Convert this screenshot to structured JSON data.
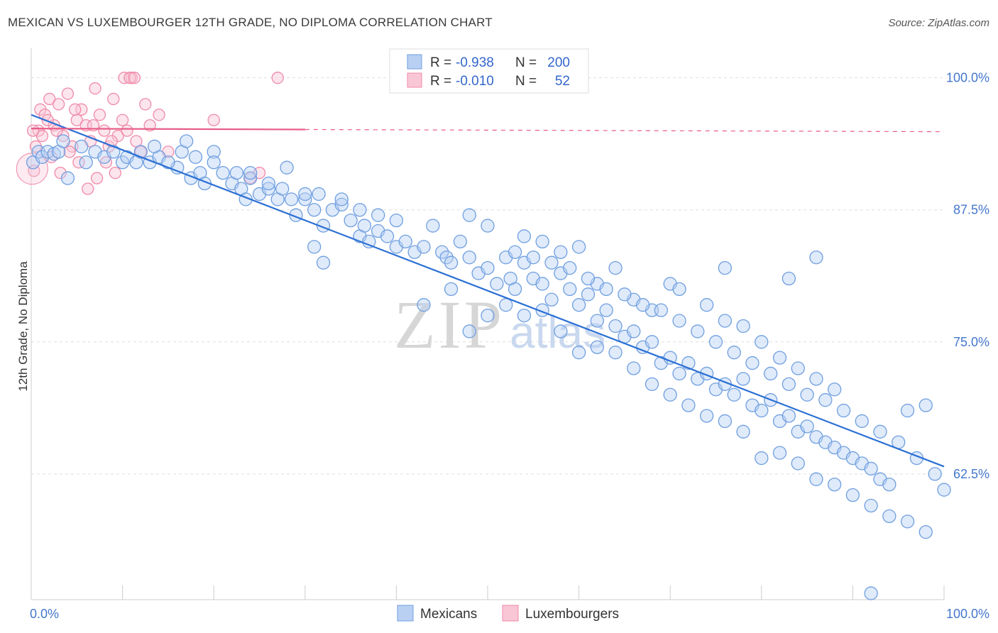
{
  "header": {
    "title": "MEXICAN VS LUXEMBOURGER 12TH GRADE, NO DIPLOMA CORRELATION CHART",
    "source": "Source: ZipAtlas.com"
  },
  "watermark": {
    "zip": "ZIP",
    "atlas": "atlas"
  },
  "colors": {
    "mexicans": "#6f9fe0",
    "mexicans_line": "#2a6fd4",
    "luxembourgers": "#f08aa8",
    "luxembourgers_line": "#e85c88",
    "tick_label": "#4477cc",
    "grid": "#dddddd"
  },
  "legend": {
    "rows": [
      {
        "r_label": "R = ",
        "r_value": "-0.938",
        "n_label": "N = ",
        "n_value": "200"
      },
      {
        "r_label": "R = ",
        "r_value": "-0.010",
        "n_label": "N = ",
        "n_value": "52"
      }
    ]
  },
  "bottom_legend": [
    "Mexicans",
    "Luxembourgers"
  ],
  "chart_data": {
    "type": "scatter",
    "title": "MEXICAN VS LUXEMBOURGER 12TH GRADE, NO DIPLOMA CORRELATION CHART",
    "xlabel": "",
    "ylabel": "12th Grade, No Diploma",
    "xlim": [
      0,
      100
    ],
    "ylim": [
      50.6,
      102.8
    ],
    "x_tick_labels": [
      "0.0%",
      "100.0%"
    ],
    "y_ticks": [
      100.0,
      87.5,
      75.0,
      62.5
    ],
    "y_tick_labels": [
      "100.0%",
      "87.5%",
      "75.0%",
      "62.5%"
    ],
    "grid": true,
    "legend_position": "top-center",
    "series": [
      {
        "name": "Mexicans",
        "r": -0.938,
        "n": 200,
        "trend": {
          "x": [
            0,
            100
          ],
          "y": [
            96.5,
            63.2
          ]
        },
        "points": [
          [
            0.2,
            92.0
          ],
          [
            0.8,
            93.0
          ],
          [
            1.2,
            92.5
          ],
          [
            1.8,
            93.0
          ],
          [
            2.5,
            92.8
          ],
          [
            3.0,
            93.0
          ],
          [
            3.5,
            94.0
          ],
          [
            4.0,
            90.5
          ],
          [
            5.5,
            93.5
          ],
          [
            6.0,
            92.0
          ],
          [
            7.0,
            93.0
          ],
          [
            8.0,
            92.5
          ],
          [
            9.0,
            93.0
          ],
          [
            10.0,
            92.0
          ],
          [
            10.5,
            92.5
          ],
          [
            11.5,
            92.0
          ],
          [
            12.0,
            93.0
          ],
          [
            13.0,
            92.0
          ],
          [
            14.0,
            92.5
          ],
          [
            13.5,
            93.5
          ],
          [
            16.0,
            91.5
          ],
          [
            16.5,
            93.0
          ],
          [
            15.0,
            92.0
          ],
          [
            17.5,
            90.5
          ],
          [
            17.0,
            94.0
          ],
          [
            18.5,
            91.0
          ],
          [
            19.0,
            90.0
          ],
          [
            20.0,
            93.0
          ],
          [
            21.0,
            91.0
          ],
          [
            22.0,
            90.0
          ],
          [
            22.5,
            91.0
          ],
          [
            23.0,
            89.5
          ],
          [
            23.5,
            88.5
          ],
          [
            24.0,
            90.5
          ],
          [
            25.0,
            89.0
          ],
          [
            26.0,
            89.5
          ],
          [
            27.0,
            88.5
          ],
          [
            27.5,
            89.5
          ],
          [
            28.0,
            91.5
          ],
          [
            28.5,
            88.5
          ],
          [
            29.0,
            87.0
          ],
          [
            30.0,
            88.5
          ],
          [
            31.0,
            87.5
          ],
          [
            31.5,
            89.0
          ],
          [
            32.0,
            86.0
          ],
          [
            33.0,
            87.5
          ],
          [
            34.0,
            88.0
          ],
          [
            35.0,
            86.5
          ],
          [
            36.0,
            85.0
          ],
          [
            36.5,
            86.0
          ],
          [
            37.0,
            84.5
          ],
          [
            38.0,
            85.5
          ],
          [
            39.0,
            85.0
          ],
          [
            40.0,
            84.0
          ],
          [
            41.0,
            84.5
          ],
          [
            42.0,
            83.5
          ],
          [
            43.0,
            84.0
          ],
          [
            44.0,
            86.0
          ],
          [
            45.0,
            83.5
          ],
          [
            45.5,
            83.0
          ],
          [
            46.0,
            82.5
          ],
          [
            47.0,
            84.5
          ],
          [
            48.0,
            83.0
          ],
          [
            49.0,
            81.5
          ],
          [
            50.0,
            82.0
          ],
          [
            51.0,
            80.5
          ],
          [
            52.0,
            83.0
          ],
          [
            52.5,
            81.0
          ],
          [
            53.0,
            80.0
          ],
          [
            54.0,
            82.5
          ],
          [
            55.0,
            81.0
          ],
          [
            56.0,
            80.5
          ],
          [
            57.0,
            79.0
          ],
          [
            58.0,
            81.5
          ],
          [
            59.0,
            80.0
          ],
          [
            60.0,
            78.5
          ],
          [
            61.0,
            79.5
          ],
          [
            62.0,
            77.0
          ],
          [
            63.0,
            78.0
          ],
          [
            64.0,
            76.5
          ],
          [
            65.0,
            75.5
          ],
          [
            66.0,
            76.0
          ],
          [
            67.0,
            74.5
          ],
          [
            68.0,
            75.0
          ],
          [
            69.0,
            73.0
          ],
          [
            70.0,
            73.5
          ],
          [
            71.0,
            72.0
          ],
          [
            72.0,
            73.0
          ],
          [
            73.0,
            71.5
          ],
          [
            74.0,
            72.0
          ],
          [
            75.0,
            70.5
          ],
          [
            76.0,
            71.0
          ],
          [
            77.0,
            70.0
          ],
          [
            78.0,
            71.5
          ],
          [
            79.0,
            69.0
          ],
          [
            80.0,
            68.5
          ],
          [
            81.0,
            69.5
          ],
          [
            82.0,
            67.5
          ],
          [
            83.0,
            68.0
          ],
          [
            84.0,
            66.5
          ],
          [
            85.0,
            67.0
          ],
          [
            86.0,
            66.0
          ],
          [
            87.0,
            65.5
          ],
          [
            88.0,
            65.0
          ],
          [
            89.0,
            64.5
          ],
          [
            90.0,
            64.0
          ],
          [
            91.0,
            63.5
          ],
          [
            92.0,
            63.0
          ],
          [
            93.0,
            62.0
          ],
          [
            94.0,
            61.5
          ],
          [
            31.0,
            84.0
          ],
          [
            32.0,
            82.5
          ],
          [
            43.0,
            78.5
          ],
          [
            46.0,
            80.0
          ],
          [
            48.0,
            76.0
          ],
          [
            50.0,
            77.5
          ],
          [
            52.0,
            78.5
          ],
          [
            54.0,
            77.5
          ],
          [
            56.0,
            78.0
          ],
          [
            58.0,
            76.0
          ],
          [
            60.0,
            74.0
          ],
          [
            62.0,
            74.5
          ],
          [
            64.0,
            74.0
          ],
          [
            66.0,
            72.5
          ],
          [
            68.0,
            71.0
          ],
          [
            70.0,
            70.0
          ],
          [
            72.0,
            69.0
          ],
          [
            74.0,
            68.0
          ],
          [
            76.0,
            67.5
          ],
          [
            78.0,
            66.5
          ],
          [
            80.0,
            64.0
          ],
          [
            82.0,
            64.5
          ],
          [
            84.0,
            63.5
          ],
          [
            86.0,
            62.0
          ],
          [
            88.0,
            61.5
          ],
          [
            90.0,
            60.5
          ],
          [
            92.0,
            59.5
          ],
          [
            94.0,
            58.5
          ],
          [
            96.0,
            58.0
          ],
          [
            98.0,
            57.0
          ],
          [
            70.0,
            80.5
          ],
          [
            71.0,
            80.0
          ],
          [
            74.0,
            78.5
          ],
          [
            76.0,
            77.0
          ],
          [
            78.0,
            76.5
          ],
          [
            80.0,
            75.0
          ],
          [
            82.0,
            73.5
          ],
          [
            84.0,
            72.5
          ],
          [
            86.0,
            71.5
          ],
          [
            88.0,
            70.5
          ],
          [
            62.0,
            80.5
          ],
          [
            64.0,
            82.0
          ],
          [
            66.0,
            79.0
          ],
          [
            68.0,
            78.0
          ],
          [
            58.0,
            83.5
          ],
          [
            60.0,
            84.0
          ],
          [
            56.0,
            84.5
          ],
          [
            54.0,
            85.0
          ],
          [
            50.0,
            86.0
          ],
          [
            48.0,
            87.0
          ],
          [
            76.0,
            82.0
          ],
          [
            83.0,
            81.0
          ],
          [
            86.0,
            83.0
          ],
          [
            96.0,
            68.5
          ],
          [
            98.0,
            69.0
          ],
          [
            100.0,
            61.0
          ],
          [
            99.0,
            62.5
          ],
          [
            97.0,
            64.0
          ],
          [
            95.0,
            65.5
          ],
          [
            93.0,
            66.5
          ],
          [
            91.0,
            67.5
          ],
          [
            89.0,
            68.5
          ],
          [
            87.0,
            69.5
          ],
          [
            85.0,
            70.0
          ],
          [
            83.0,
            71.0
          ],
          [
            81.0,
            72.0
          ],
          [
            79.0,
            73.0
          ],
          [
            77.0,
            74.0
          ],
          [
            75.0,
            75.0
          ],
          [
            73.0,
            76.0
          ],
          [
            71.0,
            77.0
          ],
          [
            69.0,
            78.0
          ],
          [
            67.0,
            78.5
          ],
          [
            65.0,
            79.5
          ],
          [
            63.0,
            80.0
          ],
          [
            61.0,
            81.0
          ],
          [
            59.0,
            82.0
          ],
          [
            57.0,
            82.5
          ],
          [
            55.0,
            83.0
          ],
          [
            53.0,
            83.5
          ],
          [
            40.0,
            86.5
          ],
          [
            38.0,
            87.0
          ],
          [
            36.0,
            87.5
          ],
          [
            34.0,
            88.5
          ],
          [
            30.0,
            89.0
          ],
          [
            26.0,
            90.0
          ],
          [
            24.0,
            91.0
          ],
          [
            20.0,
            92.0
          ],
          [
            18.0,
            92.5
          ],
          [
            92.0,
            51.2
          ]
        ]
      },
      {
        "name": "Luxembourgers",
        "r": -0.01,
        "n": 52,
        "trend": {
          "x": [
            0,
            100
          ],
          "y": [
            95.2,
            94.9
          ]
        },
        "points": [
          [
            0.3,
            91.2
          ],
          [
            0.8,
            95.0
          ],
          [
            1.0,
            97.0
          ],
          [
            1.5,
            96.5
          ],
          [
            2.0,
            98.0
          ],
          [
            2.5,
            95.5
          ],
          [
            3.0,
            97.5
          ],
          [
            3.5,
            94.5
          ],
          [
            4.0,
            98.5
          ],
          [
            4.5,
            93.5
          ],
          [
            5.0,
            96.0
          ],
          [
            5.5,
            97.0
          ],
          [
            6.0,
            95.5
          ],
          [
            6.5,
            94.0
          ],
          [
            7.0,
            99.0
          ],
          [
            7.5,
            96.5
          ],
          [
            8.0,
            95.0
          ],
          [
            8.5,
            93.5
          ],
          [
            9.0,
            98.0
          ],
          [
            9.5,
            94.5
          ],
          [
            10.0,
            96.0
          ],
          [
            10.5,
            95.0
          ],
          [
            11.0,
            100.0
          ],
          [
            11.5,
            94.0
          ],
          [
            12.0,
            93.0
          ],
          [
            12.5,
            97.5
          ],
          [
            13.0,
            95.5
          ],
          [
            14.0,
            96.5
          ],
          [
            15.0,
            93.0
          ],
          [
            0.5,
            93.5
          ],
          [
            1.2,
            94.5
          ],
          [
            2.2,
            92.5
          ],
          [
            3.2,
            91.0
          ],
          [
            4.2,
            93.0
          ],
          [
            5.2,
            92.0
          ],
          [
            6.2,
            89.5
          ],
          [
            7.2,
            90.5
          ],
          [
            8.2,
            92.0
          ],
          [
            9.2,
            91.0
          ],
          [
            10.2,
            100.0
          ],
          [
            10.8,
            100.0
          ],
          [
            11.3,
            100.0
          ],
          [
            20.0,
            96.0
          ],
          [
            24.0,
            90.5
          ],
          [
            25.0,
            91.0
          ],
          [
            27.0,
            100.0
          ],
          [
            2.8,
            95.0
          ],
          [
            4.8,
            97.0
          ],
          [
            6.8,
            95.5
          ],
          [
            8.8,
            94.0
          ],
          [
            1.8,
            96.0
          ],
          [
            0.2,
            95.0
          ]
        ]
      }
    ]
  }
}
